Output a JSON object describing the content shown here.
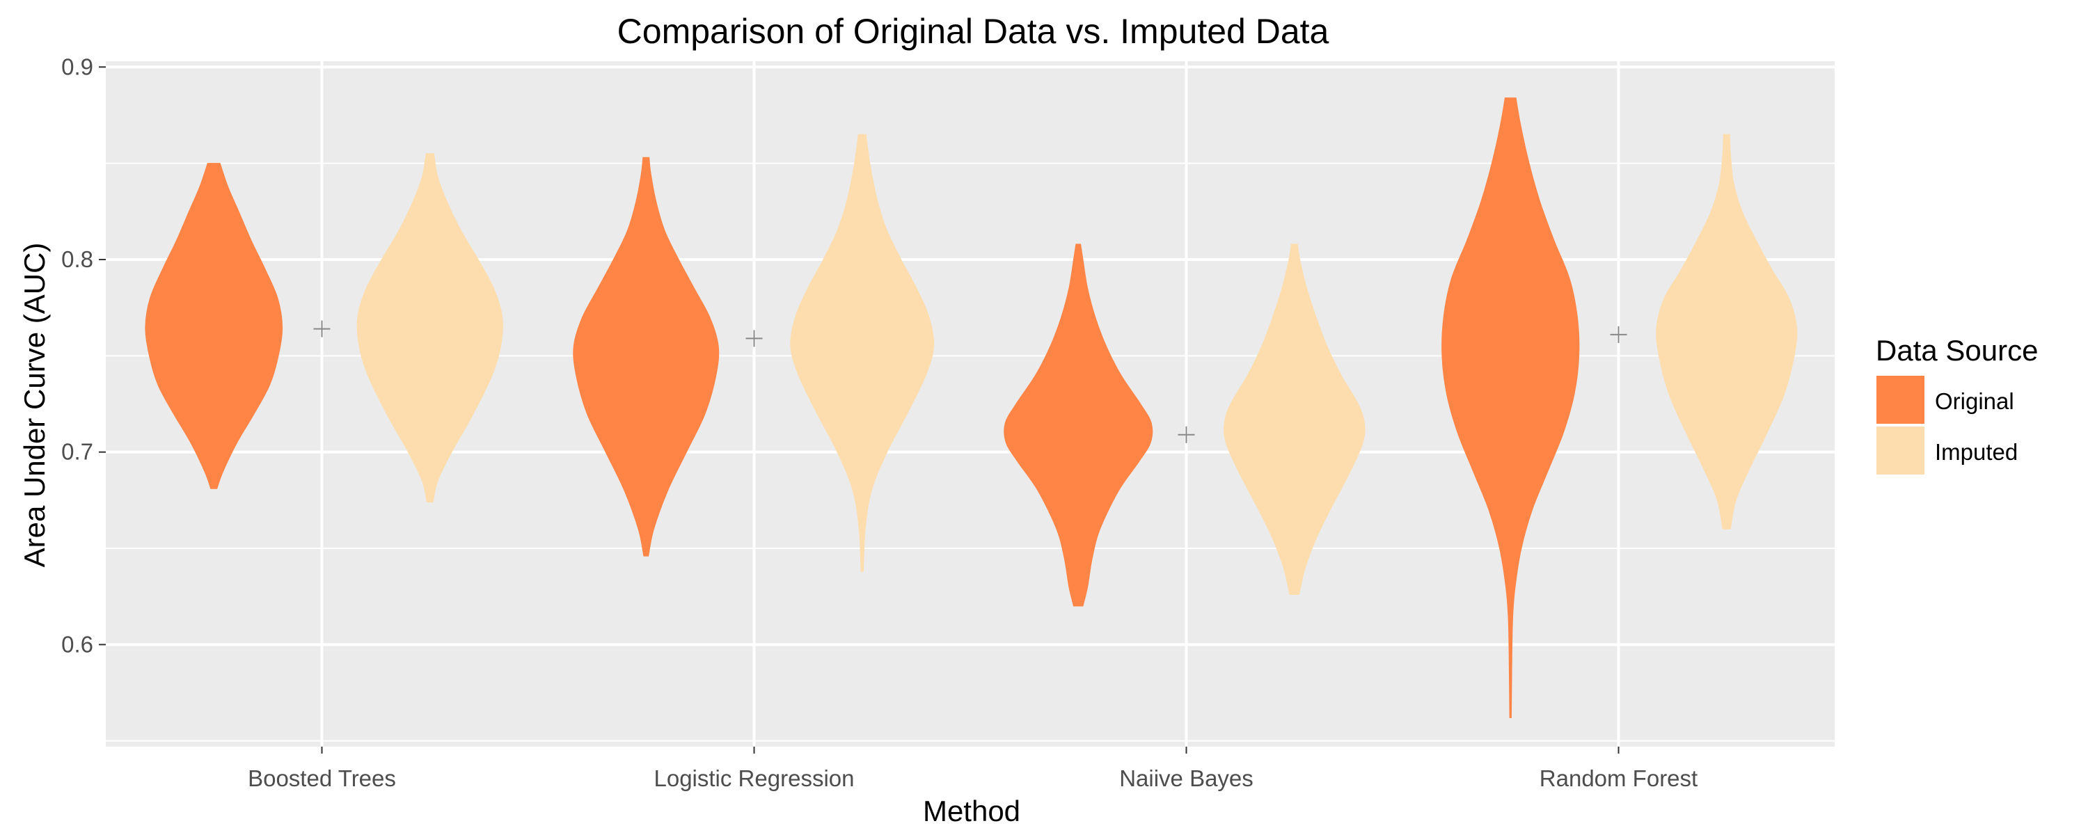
{
  "chart_data": {
    "type": "violin",
    "title": "Comparison of Original Data vs. Imputed Data",
    "xlabel": "Method",
    "ylabel": "Area Under Curve (AUC)",
    "ylim": [
      0.547,
      0.903
    ],
    "yticks": [
      "0.6",
      "0.7",
      "0.8",
      "0.9"
    ],
    "grid": true,
    "legend": {
      "title": "Data Source",
      "position": "right"
    },
    "categories": [
      "Boosted Trees",
      "Logistic Regression",
      "Naiive Bayes",
      "Random Forest"
    ],
    "series": [
      {
        "name": "Original",
        "color": "#FF8547",
        "values": [
          {
            "min": 0.681,
            "max": 0.85,
            "profile": [
              [
                0.681,
                0.04
              ],
              [
                0.69,
                0.12
              ],
              [
                0.705,
                0.3
              ],
              [
                0.72,
                0.52
              ],
              [
                0.735,
                0.72
              ],
              [
                0.75,
                0.83
              ],
              [
                0.765,
                0.88
              ],
              [
                0.78,
                0.82
              ],
              [
                0.795,
                0.66
              ],
              [
                0.81,
                0.48
              ],
              [
                0.825,
                0.32
              ],
              [
                0.838,
                0.18
              ],
              [
                0.85,
                0.08
              ]
            ]
          },
          {
            "min": 0.646,
            "max": 0.853,
            "profile": [
              [
                0.646,
                0.03
              ],
              [
                0.66,
                0.1
              ],
              [
                0.68,
                0.28
              ],
              [
                0.7,
                0.52
              ],
              [
                0.72,
                0.76
              ],
              [
                0.74,
                0.9
              ],
              [
                0.755,
                0.93
              ],
              [
                0.77,
                0.82
              ],
              [
                0.785,
                0.62
              ],
              [
                0.8,
                0.42
              ],
              [
                0.815,
                0.24
              ],
              [
                0.83,
                0.13
              ],
              [
                0.845,
                0.06
              ],
              [
                0.853,
                0.04
              ]
            ]
          },
          {
            "min": 0.62,
            "max": 0.808,
            "profile": [
              [
                0.62,
                0.06
              ],
              [
                0.63,
                0.12
              ],
              [
                0.645,
                0.18
              ],
              [
                0.66,
                0.28
              ],
              [
                0.68,
                0.52
              ],
              [
                0.695,
                0.78
              ],
              [
                0.705,
                0.93
              ],
              [
                0.715,
                0.94
              ],
              [
                0.725,
                0.8
              ],
              [
                0.74,
                0.55
              ],
              [
                0.755,
                0.36
              ],
              [
                0.77,
                0.22
              ],
              [
                0.785,
                0.12
              ],
              [
                0.8,
                0.06
              ],
              [
                0.808,
                0.03
              ]
            ]
          },
          {
            "min": 0.562,
            "max": 0.884,
            "profile": [
              [
                0.562,
                0.01
              ],
              [
                0.58,
                0.015
              ],
              [
                0.6,
                0.02
              ],
              [
                0.615,
                0.03
              ],
              [
                0.63,
                0.06
              ],
              [
                0.65,
                0.14
              ],
              [
                0.67,
                0.28
              ],
              [
                0.69,
                0.48
              ],
              [
                0.71,
                0.68
              ],
              [
                0.73,
                0.82
              ],
              [
                0.75,
                0.88
              ],
              [
                0.77,
                0.86
              ],
              [
                0.79,
                0.76
              ],
              [
                0.81,
                0.56
              ],
              [
                0.83,
                0.38
              ],
              [
                0.85,
                0.24
              ],
              [
                0.87,
                0.13
              ],
              [
                0.884,
                0.07
              ]
            ]
          }
        ]
      },
      {
        "name": "Imputed",
        "color": "#FDDDAD",
        "values": [
          {
            "min": 0.674,
            "max": 0.855,
            "profile": [
              [
                0.674,
                0.04
              ],
              [
                0.685,
                0.1
              ],
              [
                0.7,
                0.28
              ],
              [
                0.72,
                0.56
              ],
              [
                0.74,
                0.8
              ],
              [
                0.755,
                0.91
              ],
              [
                0.77,
                0.93
              ],
              [
                0.785,
                0.82
              ],
              [
                0.8,
                0.62
              ],
              [
                0.815,
                0.4
              ],
              [
                0.83,
                0.22
              ],
              [
                0.843,
                0.1
              ],
              [
                0.855,
                0.05
              ]
            ]
          },
          {
            "min": 0.638,
            "max": 0.865,
            "profile": [
              [
                0.638,
                0.015
              ],
              [
                0.66,
                0.04
              ],
              [
                0.68,
                0.12
              ],
              [
                0.7,
                0.32
              ],
              [
                0.72,
                0.58
              ],
              [
                0.74,
                0.82
              ],
              [
                0.755,
                0.92
              ],
              [
                0.77,
                0.86
              ],
              [
                0.785,
                0.7
              ],
              [
                0.8,
                0.5
              ],
              [
                0.815,
                0.32
              ],
              [
                0.83,
                0.2
              ],
              [
                0.845,
                0.12
              ],
              [
                0.858,
                0.07
              ],
              [
                0.865,
                0.05
              ]
            ]
          },
          {
            "min": 0.626,
            "max": 0.808,
            "profile": [
              [
                0.626,
                0.06
              ],
              [
                0.64,
                0.14
              ],
              [
                0.655,
                0.28
              ],
              [
                0.67,
                0.46
              ],
              [
                0.69,
                0.72
              ],
              [
                0.705,
                0.88
              ],
              [
                0.715,
                0.9
              ],
              [
                0.725,
                0.82
              ],
              [
                0.74,
                0.6
              ],
              [
                0.755,
                0.42
              ],
              [
                0.77,
                0.28
              ],
              [
                0.785,
                0.16
              ],
              [
                0.8,
                0.07
              ],
              [
                0.808,
                0.04
              ]
            ]
          },
          {
            "min": 0.66,
            "max": 0.865,
            "profile": [
              [
                0.66,
                0.05
              ],
              [
                0.675,
                0.12
              ],
              [
                0.69,
                0.28
              ],
              [
                0.71,
                0.52
              ],
              [
                0.73,
                0.74
              ],
              [
                0.75,
                0.87
              ],
              [
                0.765,
                0.9
              ],
              [
                0.78,
                0.8
              ],
              [
                0.795,
                0.58
              ],
              [
                0.81,
                0.38
              ],
              [
                0.825,
                0.2
              ],
              [
                0.84,
                0.09
              ],
              [
                0.855,
                0.05
              ],
              [
                0.865,
                0.04
              ]
            ]
          }
        ]
      }
    ],
    "means": [
      0.764,
      0.759,
      0.709,
      0.761
    ]
  }
}
